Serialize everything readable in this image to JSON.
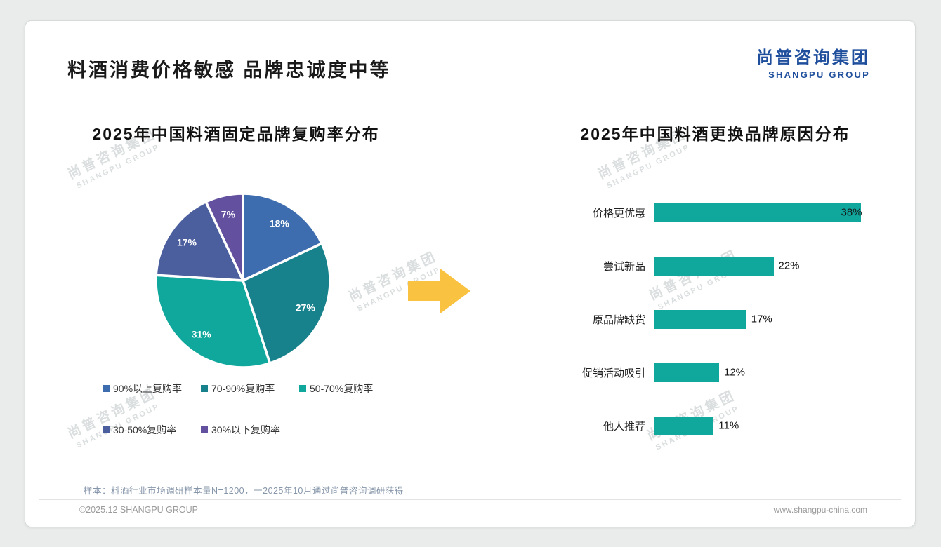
{
  "header": {
    "title": "料酒消费价格敏感 品牌忠诚度中等",
    "logo": {
      "cn": "尚普咨询集团",
      "en": "SHANGPU GROUP"
    }
  },
  "watermark": {
    "line1": "尚普咨询集团",
    "line2": "SHANGPU GROUP"
  },
  "colors": {
    "brand_blue": "#1f4f9c",
    "bar_teal": "#10a79d",
    "arrow_yellow": "#f9c341"
  },
  "chart_data": [
    {
      "type": "pie",
      "title": "2025年中国料酒固定品牌复购率分布",
      "categories": [
        "90%以上复购率",
        "70-90%复购率",
        "50-70%复购率",
        "30-50%复购率",
        "30%以下复购率"
      ],
      "values": [
        18,
        27,
        31,
        17,
        7
      ],
      "labels": [
        "18%",
        "27%",
        "31%",
        "17%",
        "7%"
      ],
      "colors": [
        "#3d6dae",
        "#17828b",
        "#10a79d",
        "#4b5e9e",
        "#63519f"
      ],
      "start_angle": "top",
      "direction": "clockwise",
      "legend_position": "bottom"
    },
    {
      "type": "bar",
      "orientation": "horizontal",
      "title": "2025年中国料酒更换品牌原因分布",
      "categories": [
        "价格更优惠",
        "尝试新品",
        "原品牌缺货",
        "促销活动吸引",
        "他人推荐"
      ],
      "values": [
        38,
        22,
        17,
        12,
        11
      ],
      "labels": [
        "38%",
        "22%",
        "17%",
        "12%",
        "11%"
      ],
      "bar_color": "#10a79d",
      "xlim": [
        0,
        40
      ],
      "grid": false,
      "value_labels": "end"
    }
  ],
  "footnote": "样本：料酒行业市场调研样本量N=1200，于2025年10月通过尚普咨询调研获得",
  "footer": {
    "left": "©2025.12 SHANGPU GROUP",
    "right": "www.shangpu-china.com"
  }
}
